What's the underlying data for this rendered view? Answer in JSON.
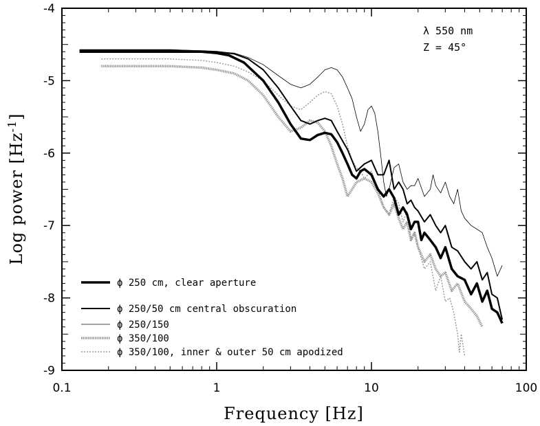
{
  "chart_data": {
    "type": "line",
    "xlabel": "Frequency [Hz]",
    "ylabel": "Log power [Hz",
    "ylabel_sup": "-1",
    "ylabel_close": "]",
    "xscale": "log",
    "xlim": [
      0.1,
      100
    ],
    "ylim": [
      -9,
      -4
    ],
    "xticks": [
      {
        "value": 0.1,
        "label": "0.1"
      },
      {
        "value": 1,
        "label": "1"
      },
      {
        "value": 10,
        "label": "10"
      },
      {
        "value": 100,
        "label": "100"
      }
    ],
    "yticks": [
      {
        "value": -9,
        "label": "-9"
      },
      {
        "value": -8,
        "label": "-8"
      },
      {
        "value": -7,
        "label": "-7"
      },
      {
        "value": -6,
        "label": "-6"
      },
      {
        "value": -5,
        "label": "-5"
      },
      {
        "value": -4,
        "label": "-4"
      }
    ],
    "annotations": [
      "λ 550 nm",
      "Z = 45°"
    ],
    "legend_position": "bottom-left",
    "grid": false,
    "series": [
      {
        "name": "ϕ 250 cm, clear aperture",
        "style": "thick",
        "x": [
          0.13,
          0.5,
          0.8,
          1.0,
          1.2,
          1.5,
          2.0,
          2.5,
          3.0,
          3.5,
          4.0,
          4.5,
          5.0,
          5.5,
          6.0,
          6.5,
          7.0,
          7.5,
          8.0,
          8.5,
          9.0,
          10.0,
          11.0,
          12.0,
          13.0,
          14.0,
          15.0,
          16.0,
          17.0,
          18.0,
          19.0,
          20.0,
          21.0,
          22.0,
          24.0,
          26.0,
          28.0,
          30.0,
          33.0,
          36.0,
          40.0,
          44.0,
          48.0,
          52.0,
          56.0,
          60.0,
          65.0,
          70.0
        ],
        "y": [
          -4.6,
          -4.6,
          -4.6,
          -4.62,
          -4.65,
          -4.75,
          -5.0,
          -5.3,
          -5.6,
          -5.8,
          -5.82,
          -5.75,
          -5.72,
          -5.74,
          -5.85,
          -6.0,
          -6.15,
          -6.3,
          -6.35,
          -6.25,
          -6.22,
          -6.3,
          -6.5,
          -6.6,
          -6.5,
          -6.62,
          -6.85,
          -6.75,
          -6.85,
          -7.05,
          -6.95,
          -6.95,
          -7.2,
          -7.1,
          -7.2,
          -7.3,
          -7.45,
          -7.3,
          -7.6,
          -7.7,
          -7.75,
          -7.95,
          -7.8,
          -8.05,
          -7.9,
          -8.15,
          -8.2,
          -8.35
        ]
      },
      {
        "name": "ϕ 250/50 cm central obscuration",
        "style": "medium",
        "x": [
          0.13,
          0.5,
          0.8,
          1.0,
          1.3,
          1.6,
          2.0,
          2.5,
          3.0,
          3.5,
          4.0,
          4.5,
          5.0,
          5.5,
          6.0,
          7.0,
          8.0,
          9.0,
          10.0,
          11.0,
          12.0,
          13.0,
          14.0,
          15.0,
          16.0,
          17.0,
          18.0,
          19.0,
          20.0,
          22.0,
          24.0,
          26.0,
          28.0,
          30.0,
          33.0,
          36.0,
          40.0,
          44.0,
          48.0,
          52.0,
          56.0,
          60.0,
          65.0,
          70.0
        ],
        "y": [
          -4.58,
          -4.58,
          -4.59,
          -4.6,
          -4.63,
          -4.7,
          -4.85,
          -5.1,
          -5.35,
          -5.55,
          -5.6,
          -5.55,
          -5.52,
          -5.55,
          -5.7,
          -5.95,
          -6.25,
          -6.15,
          -6.1,
          -6.3,
          -6.3,
          -6.1,
          -6.5,
          -6.4,
          -6.5,
          -6.7,
          -6.65,
          -6.75,
          -6.8,
          -6.95,
          -6.85,
          -7.0,
          -7.1,
          -7.0,
          -7.3,
          -7.35,
          -7.5,
          -7.6,
          -7.5,
          -7.75,
          -7.65,
          -7.95,
          -8.0,
          -8.3
        ]
      },
      {
        "name": "ϕ 250/150",
        "style": "thin",
        "x": [
          0.13,
          0.5,
          1.0,
          1.3,
          1.6,
          2.0,
          2.5,
          3.0,
          3.5,
          4.0,
          4.5,
          5.0,
          5.5,
          6.0,
          6.5,
          7.0,
          7.5,
          8.0,
          8.5,
          9.0,
          9.5,
          10.0,
          10.5,
          11.0,
          11.5,
          12.0,
          12.5,
          13.0,
          14.0,
          15.0,
          16.0,
          17.0,
          18.0,
          19.0,
          20.0,
          22.0,
          24.0,
          25.0,
          26.0,
          28.0,
          30.0,
          32.0,
          34.0,
          36.0,
          38.0,
          40.0,
          44.0,
          48.0,
          52.0,
          56.0,
          60.0,
          65.0,
          70.0
        ],
        "y": [
          -4.57,
          -4.57,
          -4.6,
          -4.62,
          -4.68,
          -4.78,
          -4.93,
          -5.05,
          -5.1,
          -5.05,
          -4.95,
          -4.85,
          -4.82,
          -4.85,
          -4.95,
          -5.1,
          -5.25,
          -5.5,
          -5.7,
          -5.6,
          -5.4,
          -5.35,
          -5.45,
          -5.7,
          -6.05,
          -6.4,
          -6.6,
          -6.5,
          -6.2,
          -6.15,
          -6.4,
          -6.5,
          -6.45,
          -6.45,
          -6.35,
          -6.6,
          -6.5,
          -6.3,
          -6.45,
          -6.55,
          -6.4,
          -6.6,
          -6.7,
          -6.5,
          -6.8,
          -6.9,
          -7.0,
          -7.05,
          -7.1,
          -7.3,
          -7.45,
          -7.7,
          -7.55
        ]
      },
      {
        "name": "ϕ 350/100",
        "style": "gray",
        "x": [
          0.18,
          0.5,
          0.8,
          1.0,
          1.3,
          1.6,
          2.0,
          2.5,
          3.0,
          3.5,
          4.0,
          4.5,
          5.0,
          5.5,
          6.0,
          6.5,
          7.0,
          7.5,
          8.0,
          9.0,
          10.0,
          11.0,
          12.0,
          13.0,
          14.0,
          15.0,
          16.0,
          17.0,
          18.0,
          19.0,
          20.0,
          22.0,
          24.0,
          26.0,
          28.0,
          30.0,
          33.0,
          36.0,
          40.0,
          44.0,
          48.0,
          52.0
        ],
        "y": [
          -4.8,
          -4.8,
          -4.82,
          -4.85,
          -4.9,
          -5.0,
          -5.2,
          -5.5,
          -5.7,
          -5.65,
          -5.55,
          -5.58,
          -5.7,
          -5.9,
          -6.15,
          -6.35,
          -6.6,
          -6.5,
          -6.4,
          -6.35,
          -6.4,
          -6.55,
          -6.75,
          -6.85,
          -6.7,
          -6.9,
          -7.05,
          -6.95,
          -7.2,
          -7.1,
          -7.3,
          -7.5,
          -7.4,
          -7.6,
          -7.7,
          -7.65,
          -7.9,
          -7.8,
          -8.05,
          -8.15,
          -8.25,
          -8.4
        ]
      },
      {
        "name": "ϕ 350/100, inner & outer 50 cm apodized",
        "style": "dotted",
        "x": [
          0.18,
          0.5,
          0.8,
          1.0,
          1.3,
          1.6,
          2.0,
          2.5,
          3.0,
          3.5,
          4.0,
          4.5,
          5.0,
          5.5,
          6.0,
          6.5,
          7.0,
          7.5,
          8.0,
          8.5,
          9.0,
          9.5,
          10.0,
          11.0,
          12.0,
          13.0,
          14.0,
          15.0,
          16.0,
          17.0,
          18.0,
          19.0,
          20.0,
          22.0,
          24.0,
          26.0,
          28.0,
          30.0,
          32.0,
          34.0,
          36.0,
          37.0,
          38.0,
          40.0
        ],
        "y": [
          -4.7,
          -4.7,
          -4.72,
          -4.75,
          -4.8,
          -4.88,
          -5.0,
          -5.2,
          -5.35,
          -5.4,
          -5.3,
          -5.2,
          -5.15,
          -5.18,
          -5.35,
          -5.6,
          -5.9,
          -6.1,
          -6.2,
          -6.25,
          -6.35,
          -6.3,
          -6.25,
          -6.5,
          -6.75,
          -6.85,
          -6.6,
          -6.7,
          -6.95,
          -6.8,
          -7.2,
          -7.1,
          -7.3,
          -7.6,
          -7.5,
          -7.9,
          -7.7,
          -8.05,
          -8.0,
          -8.2,
          -8.5,
          -8.75,
          -8.5,
          -8.8
        ]
      }
    ]
  }
}
